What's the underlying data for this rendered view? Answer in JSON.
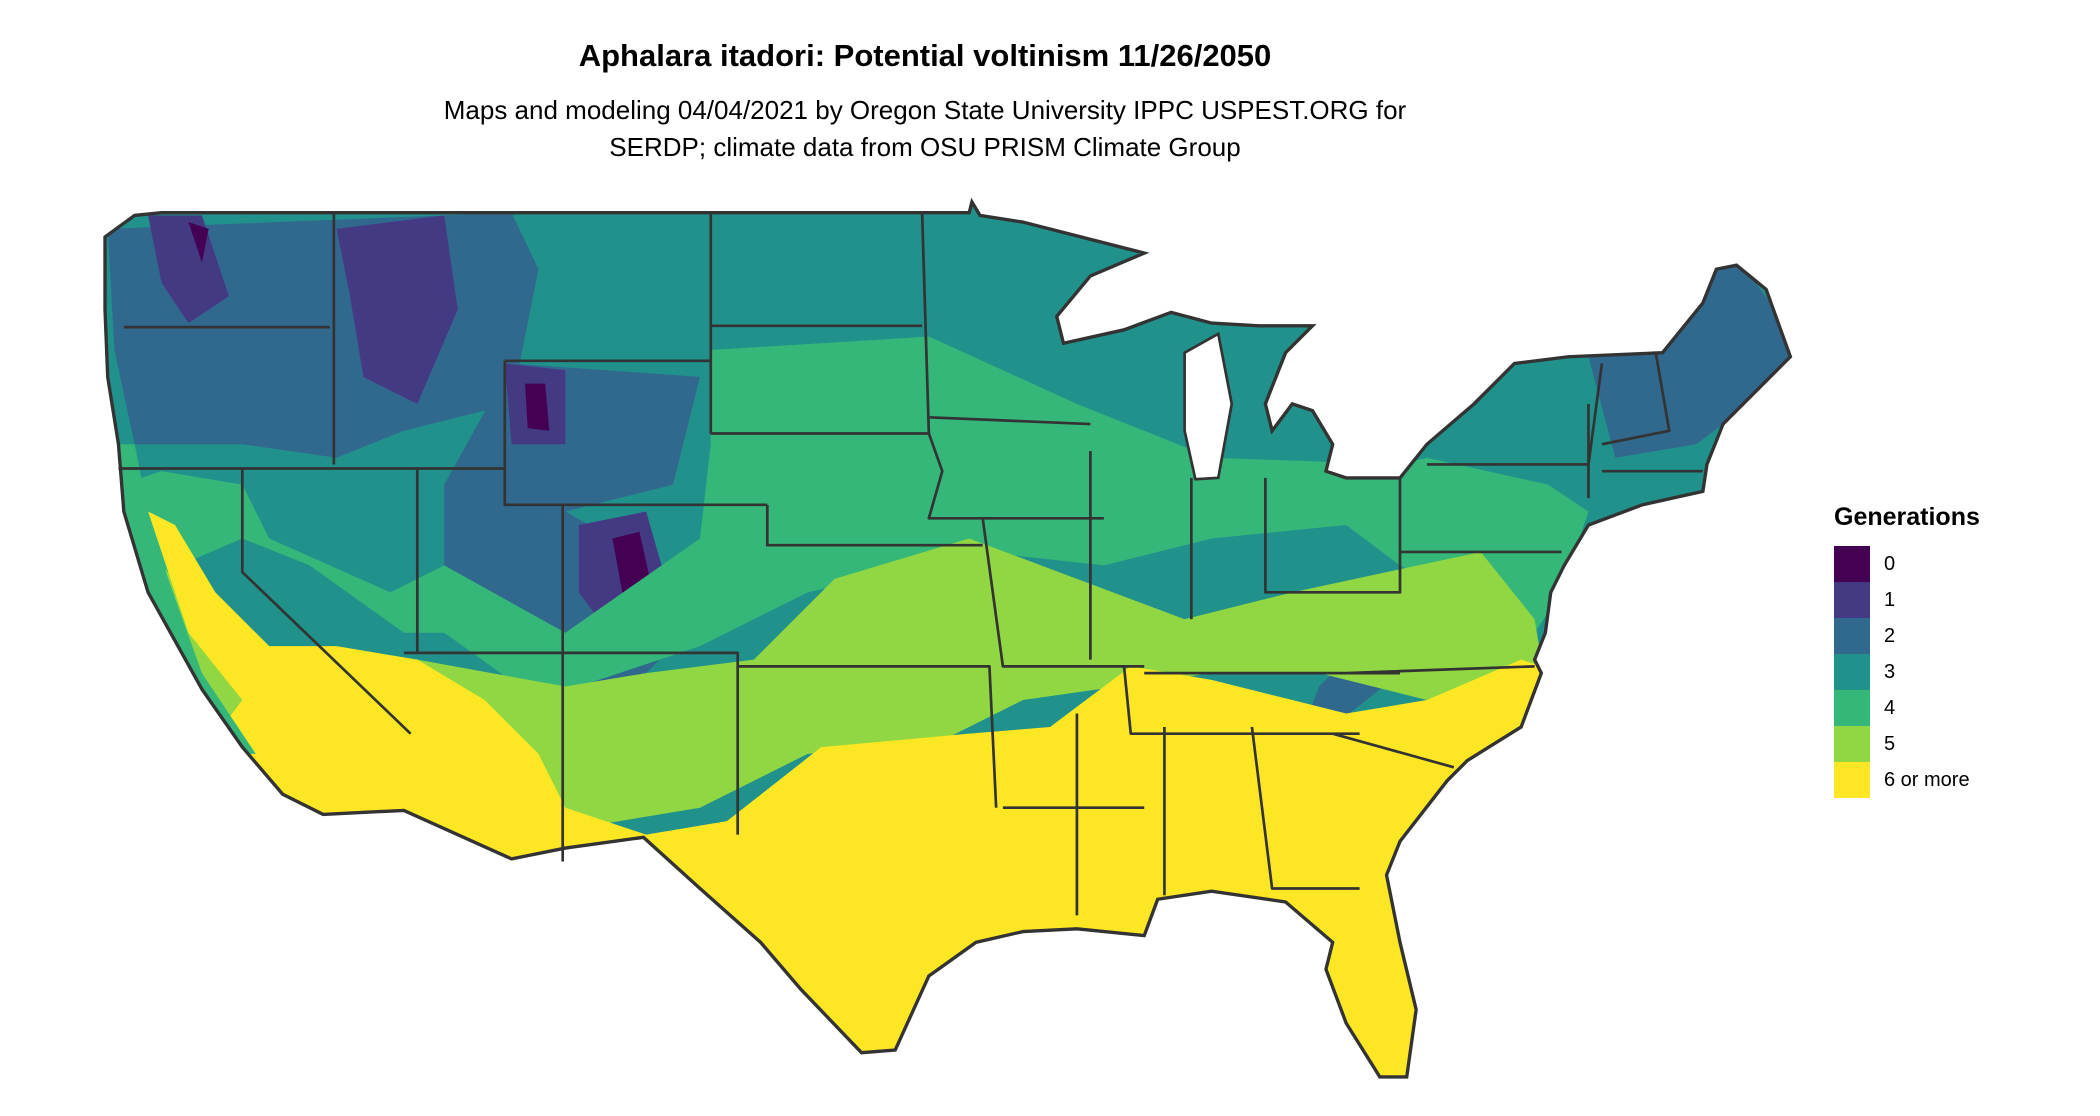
{
  "title": "Aphalara itadori: Potential voltinism 11/26/2050",
  "subtitle_line1": "Maps and modeling 04/04/2021 by Oregon State University IPPC USPEST.ORG for",
  "subtitle_line2": "SERDP; climate data from OSU PRISM Climate Group",
  "legend": {
    "title": "Generations",
    "items": [
      {
        "label": "0",
        "color": "#440154"
      },
      {
        "label": "1",
        "color": "#443983"
      },
      {
        "label": "2",
        "color": "#31688e"
      },
      {
        "label": "3",
        "color": "#21918c"
      },
      {
        "label": "4",
        "color": "#35b779"
      },
      {
        "label": "5",
        "color": "#90d743"
      },
      {
        "label": "6 or more",
        "color": "#fde725"
      }
    ]
  },
  "map": {
    "region": "Contiguous United States",
    "boundary_color": "#333333"
  }
}
